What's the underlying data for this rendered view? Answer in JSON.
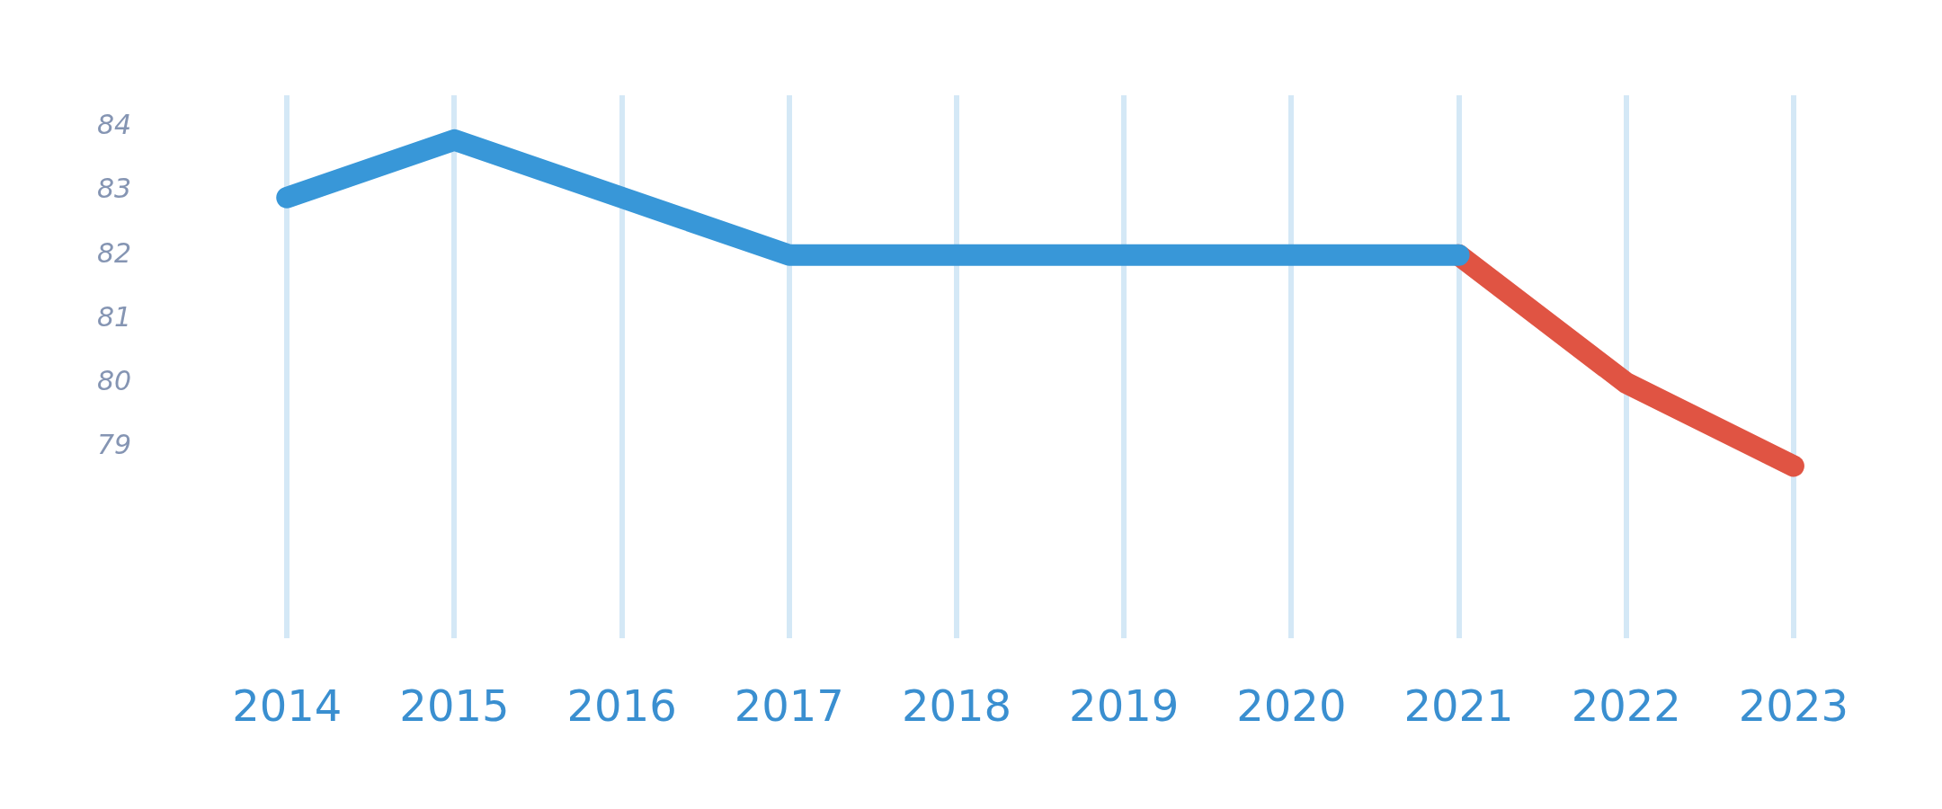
{
  "chart_data": {
    "type": "line",
    "categories": [
      "2014",
      "2015",
      "2016",
      "2017",
      "2018",
      "2019",
      "2020",
      "2021",
      "2022",
      "2023"
    ],
    "series": [
      {
        "color": "#3897d8",
        "values": [
          82.9,
          83.8,
          82.9,
          82,
          82,
          82,
          82,
          82,
          null,
          null
        ]
      },
      {
        "color": "#e05443",
        "values": [
          null,
          null,
          null,
          null,
          null,
          null,
          null,
          82,
          80,
          78.7
        ]
      }
    ],
    "ylim": [
      76,
      84.5
    ],
    "yticks": [
      79,
      80,
      81,
      82,
      83,
      84
    ],
    "grid": "x",
    "marker": "none",
    "line_style": "solid",
    "legend": false
  }
}
